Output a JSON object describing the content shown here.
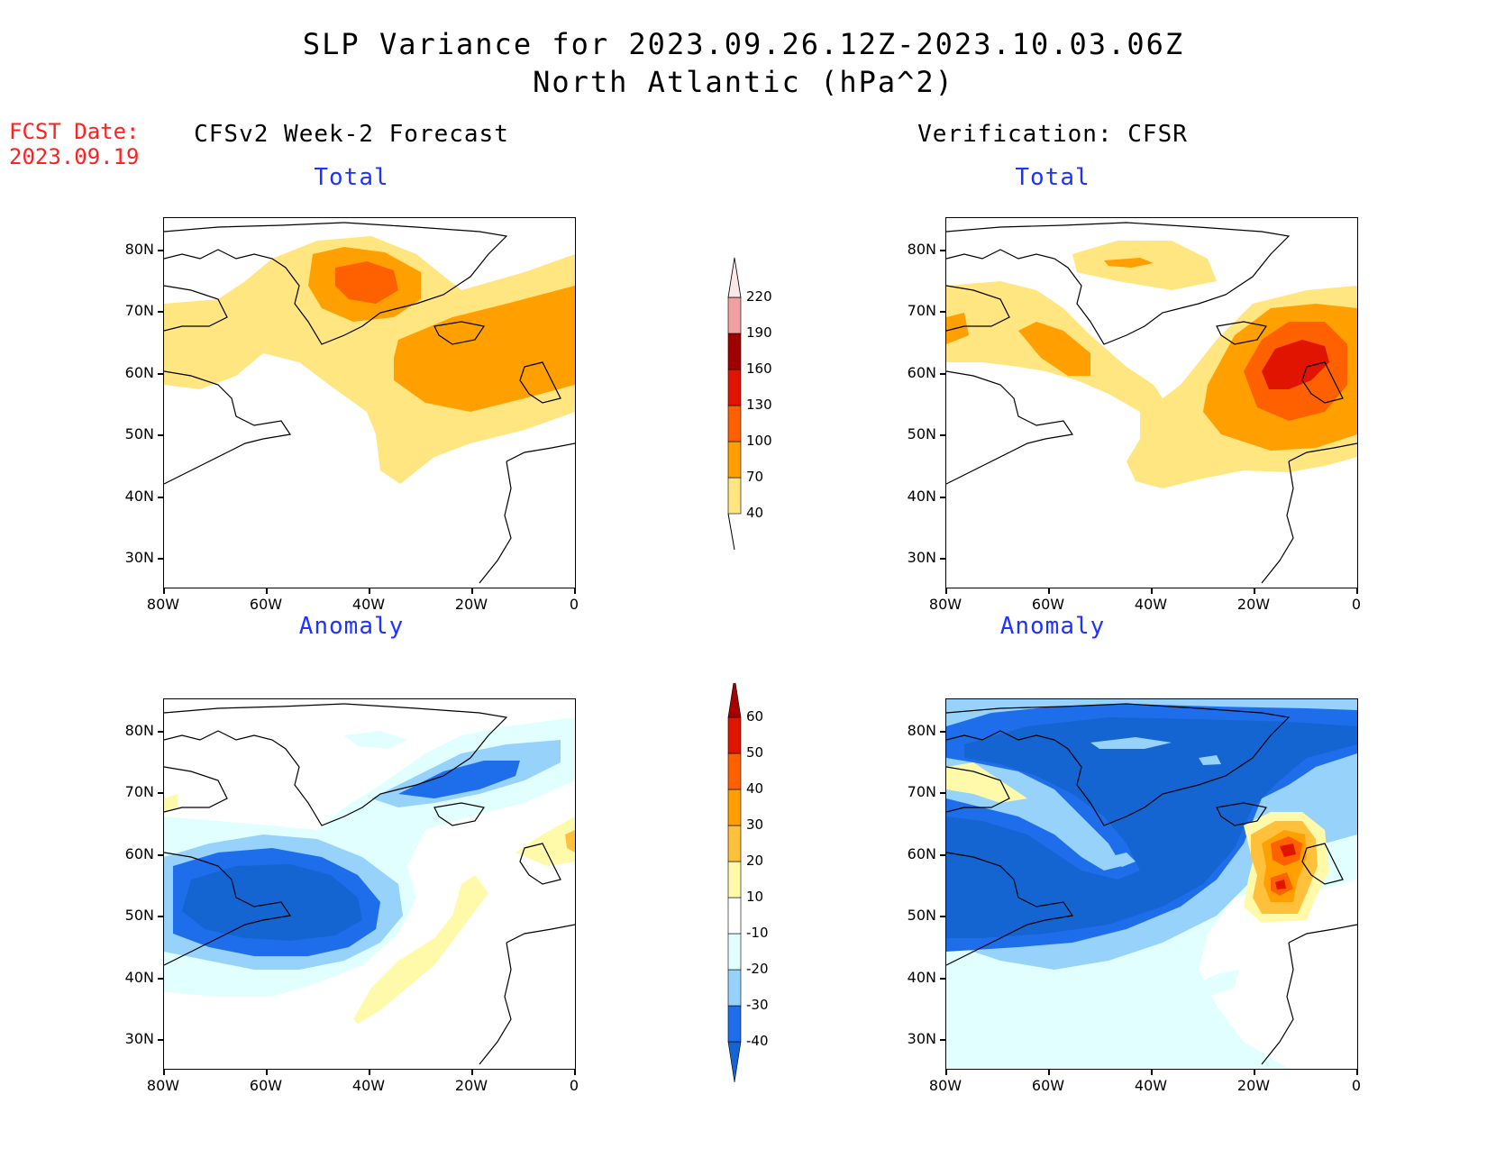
{
  "header": {
    "title_line1": "SLP Variance for 2023.09.26.12Z-2023.10.03.06Z",
    "title_line2": "North Atlantic (hPa^2)"
  },
  "fcst_date": {
    "label": "FCST Date:",
    "value": "2023.09.19"
  },
  "columns": {
    "left_title": "CFSv2 Week-2 Forecast",
    "right_title": "Verification: CFSR"
  },
  "panels": {
    "top_subtitle": "Total",
    "bottom_subtitle": "Anomaly"
  },
  "axes": {
    "lat_labels": [
      "80N",
      "70N",
      "60N",
      "50N",
      "40N",
      "30N"
    ],
    "lon_labels": [
      "80W",
      "60W",
      "40W",
      "20W",
      "0"
    ]
  },
  "colorbars": {
    "total": {
      "levels": [
        "40",
        "70",
        "100",
        "130",
        "160",
        "190",
        "220"
      ],
      "colors": [
        "#ffe680",
        "#ffa000",
        "#ff6000",
        "#e01400",
        "#a00000",
        "#f0a0a0",
        "#fce8e8"
      ]
    },
    "anomaly": {
      "levels": [
        "-40",
        "-30",
        "-20",
        "-10",
        "10",
        "20",
        "30",
        "40",
        "50",
        "60"
      ],
      "colors": [
        "#1464d2",
        "#1e6eeb",
        "#96d2fa",
        "#e1ffff",
        "#ffffff",
        "#fffaaa",
        "#ffc03c",
        "#ffa000",
        "#ff6000",
        "#e11400",
        "#a50000"
      ]
    }
  },
  "fill_colors": {
    "total_low": "#ffe680",
    "total_mid": "#ffa000",
    "total_high": "#ff6000",
    "total_max": "#e01400",
    "anom_neg40": "#1464d2",
    "anom_neg30": "#1e6eeb",
    "anom_neg20": "#96d2fa",
    "anom_neg10": "#e1ffff",
    "anom_pos10": "#fffaaa",
    "anom_pos20": "#ffc03c",
    "anom_pos30": "#ffa000",
    "anom_pos40": "#ff6000",
    "anom_pos50": "#e11400"
  }
}
